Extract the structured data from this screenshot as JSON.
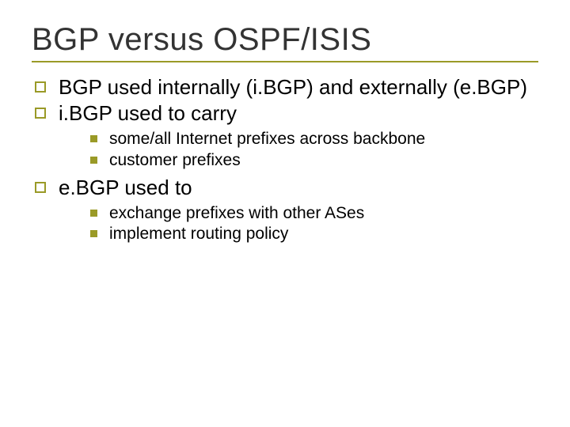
{
  "colors": {
    "accent": "#9a9a27",
    "rule": "#9a9a27",
    "title_text": "#333333",
    "body_text": "#000000",
    "background": "#ffffff"
  },
  "typography": {
    "title_fontsize": 40,
    "level1_fontsize": 26,
    "level2_fontsize": 21,
    "font_family": "Verdana, Arial, sans-serif"
  },
  "bullets": {
    "level1_shape": "hollow-square",
    "level1_size": 14,
    "level1_border_width": 2,
    "level2_shape": "solid-square",
    "level2_size": 9
  },
  "title": "BGP versus OSPF/ISIS",
  "items": [
    {
      "text": "BGP used internally (i.BGP) and externally (e.BGP)"
    },
    {
      "text": "i.BGP used to carry",
      "children": [
        {
          "text": "some/all Internet prefixes across backbone"
        },
        {
          "text": "customer prefixes"
        }
      ]
    },
    {
      "text": "e.BGP used to",
      "children": [
        {
          "text": "exchange prefixes with other ASes"
        },
        {
          "text": "implement routing policy"
        }
      ]
    }
  ]
}
